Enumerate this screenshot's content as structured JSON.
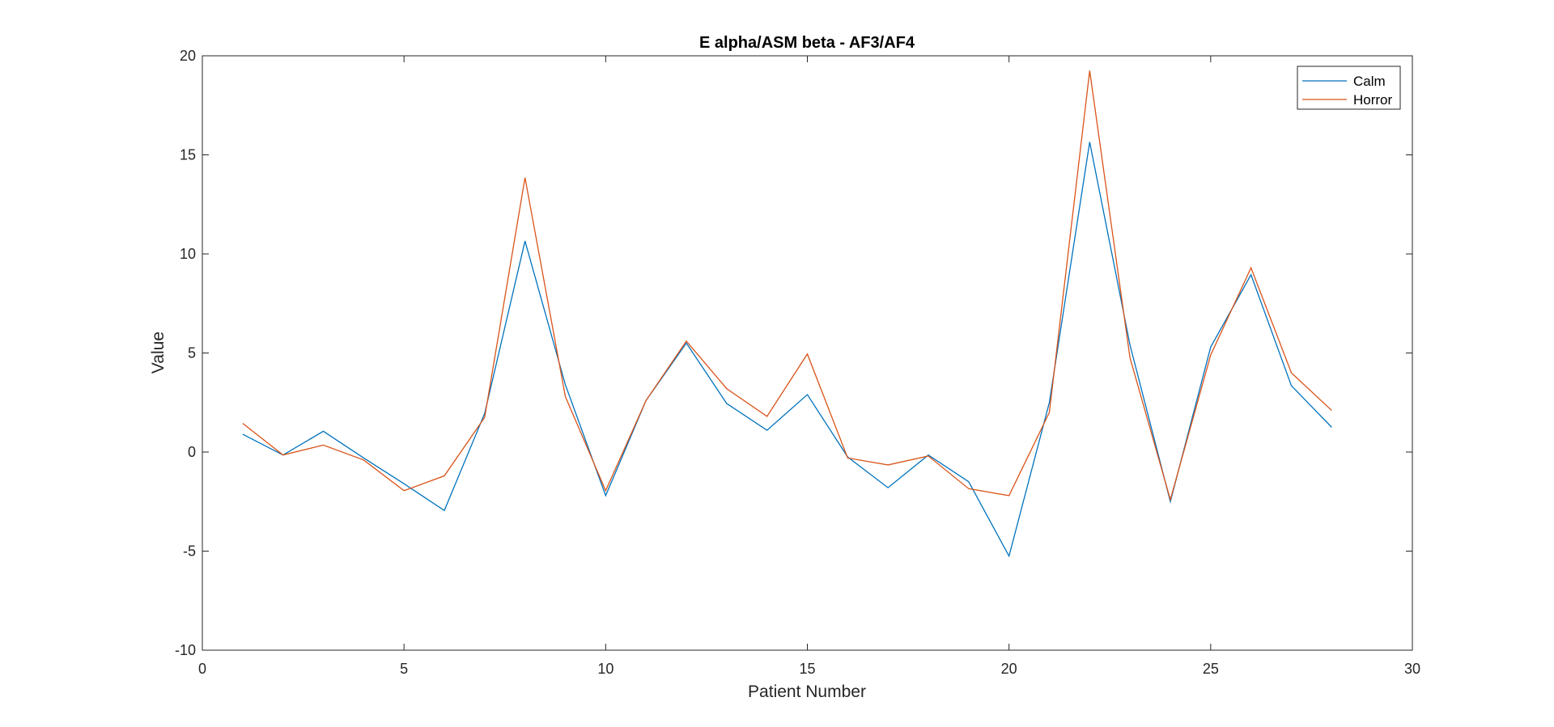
{
  "chart_data": {
    "type": "line",
    "title": "E alpha/ASM beta - AF3/AF4",
    "xlabel": "Patient Number",
    "ylabel": "Value",
    "xlim": [
      0,
      30
    ],
    "ylim": [
      -10,
      20
    ],
    "x_ticks": [
      0,
      5,
      10,
      15,
      20,
      25,
      30
    ],
    "y_ticks": [
      -10,
      -5,
      0,
      5,
      10,
      15,
      20
    ],
    "x_tick_labels": [
      "0",
      "5",
      "10",
      "15",
      "20",
      "25",
      "30"
    ],
    "y_tick_labels": [
      "-10",
      "-5",
      "0",
      "5",
      "10",
      "15",
      "20"
    ],
    "grid": false,
    "legend_position": "top-right",
    "x": [
      1,
      2,
      3,
      4,
      5,
      6,
      7,
      8,
      9,
      10,
      11,
      12,
      13,
      14,
      15,
      16,
      17,
      18,
      19,
      20,
      21,
      22,
      23,
      24,
      25,
      26,
      27,
      28
    ],
    "series": [
      {
        "name": "Calm",
        "color": "#0072BD",
        "values": [
          0.9,
          -0.15,
          1.05,
          -0.3,
          -1.6,
          -2.95,
          1.95,
          10.65,
          3.4,
          -2.2,
          2.6,
          5.5,
          2.45,
          1.1,
          2.9,
          -0.25,
          -1.8,
          -0.15,
          -1.5,
          -5.25,
          2.5,
          15.65,
          5.4,
          -2.5,
          5.3,
          8.95,
          3.35,
          1.25
        ]
      },
      {
        "name": "Horror",
        "color": "#D95319",
        "values": [
          1.45,
          -0.15,
          0.35,
          -0.4,
          -1.95,
          -1.2,
          1.75,
          13.85,
          2.8,
          -1.95,
          2.6,
          5.6,
          3.2,
          1.8,
          4.95,
          -0.3,
          -0.65,
          -0.2,
          -1.85,
          -2.2,
          2.0,
          19.25,
          4.75,
          -2.4,
          4.9,
          9.3,
          4.0,
          2.1
        ]
      }
    ]
  }
}
